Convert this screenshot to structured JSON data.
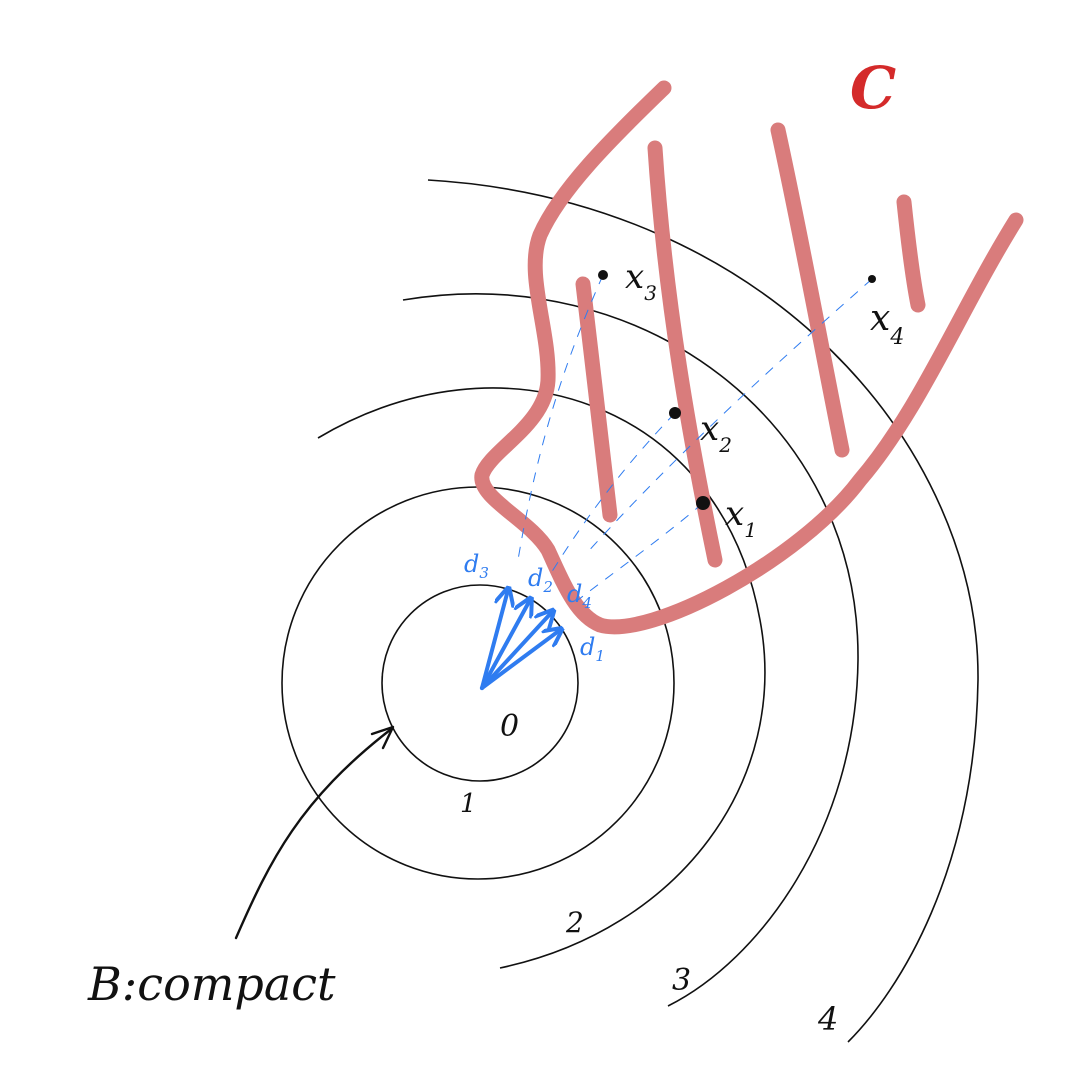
{
  "diagram": {
    "set_label": "C",
    "origin_label": "0",
    "compact_label": "B:compact",
    "rings": [
      {
        "label": "1"
      },
      {
        "label": "2"
      },
      {
        "label": "3"
      },
      {
        "label": "4"
      }
    ],
    "points": [
      {
        "label": "x",
        "sub": "1"
      },
      {
        "label": "x",
        "sub": "2"
      },
      {
        "label": "x",
        "sub": "3"
      },
      {
        "label": "x",
        "sub": "4"
      }
    ],
    "directions": [
      {
        "label": "d",
        "sub": "1"
      },
      {
        "label": "d",
        "sub": "2"
      },
      {
        "label": "d",
        "sub": "3"
      },
      {
        "label": "d",
        "sub": "4"
      }
    ],
    "colors": {
      "set_fill": "#d97c7c",
      "set_label": "#d42a2a",
      "direction": "#2f7cf0",
      "ink": "#111111"
    }
  }
}
